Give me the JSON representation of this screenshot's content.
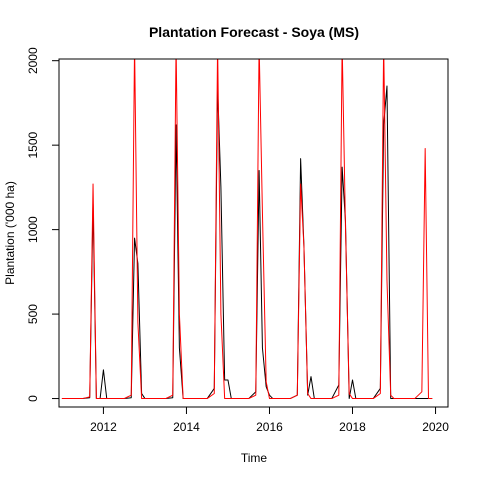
{
  "chart_data": {
    "type": "line",
    "title": "Plantation Forecast - Soya (MS)",
    "xlabel": "Time",
    "ylabel": "Plantation ('000 ha)",
    "xlim": [
      2010.93,
      2020.3
    ],
    "ylim": [
      -50,
      2010
    ],
    "x_ticks": [
      2012,
      2014,
      2016,
      2018,
      2020
    ],
    "x_tick_labels": [
      "2012",
      "2014",
      "2016",
      "2018",
      "2020"
    ],
    "y_ticks": [
      0,
      500,
      1000,
      1500,
      2000
    ],
    "y_tick_labels": [
      "0",
      "500",
      "1000",
      "1500",
      "2000"
    ],
    "grid": false,
    "legend": "none",
    "series": [
      {
        "color": "#000000",
        "points": [
          [
            2011.0,
            0
          ],
          [
            2011.5,
            0
          ],
          [
            2011.67,
            5
          ],
          [
            2011.75,
            1150
          ],
          [
            2011.83,
            0
          ],
          [
            2011.92,
            0
          ],
          [
            2012.0,
            170
          ],
          [
            2012.08,
            0
          ],
          [
            2012.5,
            0
          ],
          [
            2012.67,
            5
          ],
          [
            2012.75,
            950
          ],
          [
            2012.83,
            800
          ],
          [
            2012.92,
            30
          ],
          [
            2013.0,
            0
          ],
          [
            2013.5,
            0
          ],
          [
            2013.67,
            5
          ],
          [
            2013.75,
            1620
          ],
          [
            2013.83,
            300
          ],
          [
            2013.92,
            0
          ],
          [
            2014.5,
            0
          ],
          [
            2014.67,
            60
          ],
          [
            2014.75,
            1850
          ],
          [
            2014.83,
            1250
          ],
          [
            2014.92,
            110
          ],
          [
            2015.0,
            110
          ],
          [
            2015.08,
            0
          ],
          [
            2015.5,
            0
          ],
          [
            2015.67,
            40
          ],
          [
            2015.75,
            1350
          ],
          [
            2015.83,
            300
          ],
          [
            2015.92,
            70
          ],
          [
            2016.0,
            20
          ],
          [
            2016.08,
            0
          ],
          [
            2016.5,
            0
          ],
          [
            2016.67,
            20
          ],
          [
            2016.75,
            1420
          ],
          [
            2016.83,
            900
          ],
          [
            2016.92,
            20
          ],
          [
            2017.0,
            130
          ],
          [
            2017.08,
            0
          ],
          [
            2017.5,
            0
          ],
          [
            2017.67,
            80
          ],
          [
            2017.75,
            1370
          ],
          [
            2017.83,
            1050
          ],
          [
            2017.92,
            0
          ],
          [
            2018.0,
            110
          ],
          [
            2018.08,
            0
          ],
          [
            2018.5,
            0
          ],
          [
            2018.67,
            60
          ],
          [
            2018.75,
            1620
          ],
          [
            2018.83,
            1850
          ],
          [
            2018.92,
            0
          ],
          [
            2019.0,
            0
          ],
          [
            2019.92,
            0
          ]
        ]
      },
      {
        "color": "#ff0000",
        "points": [
          [
            2011.0,
            0
          ],
          [
            2011.5,
            0
          ],
          [
            2011.67,
            10
          ],
          [
            2011.75,
            1270
          ],
          [
            2011.83,
            0
          ],
          [
            2012.5,
            0
          ],
          [
            2012.67,
            20
          ],
          [
            2012.75,
            2100
          ],
          [
            2012.83,
            450
          ],
          [
            2012.92,
            0
          ],
          [
            2013.5,
            0
          ],
          [
            2013.67,
            20
          ],
          [
            2013.75,
            2100
          ],
          [
            2013.83,
            500
          ],
          [
            2013.92,
            0
          ],
          [
            2014.5,
            0
          ],
          [
            2014.67,
            30
          ],
          [
            2014.75,
            2100
          ],
          [
            2014.83,
            500
          ],
          [
            2014.92,
            0
          ],
          [
            2015.5,
            0
          ],
          [
            2015.67,
            20
          ],
          [
            2015.75,
            2100
          ],
          [
            2015.83,
            1100
          ],
          [
            2015.92,
            100
          ],
          [
            2016.0,
            0
          ],
          [
            2016.5,
            0
          ],
          [
            2016.67,
            20
          ],
          [
            2016.75,
            1270
          ],
          [
            2016.83,
            900
          ],
          [
            2016.92,
            30
          ],
          [
            2017.0,
            0
          ],
          [
            2017.5,
            0
          ],
          [
            2017.67,
            20
          ],
          [
            2017.75,
            2100
          ],
          [
            2017.83,
            1020
          ],
          [
            2017.92,
            30
          ],
          [
            2018.0,
            0
          ],
          [
            2018.5,
            0
          ],
          [
            2018.67,
            30
          ],
          [
            2018.75,
            2100
          ],
          [
            2018.83,
            700
          ],
          [
            2018.92,
            20
          ],
          [
            2019.0,
            0
          ],
          [
            2019.5,
            0
          ],
          [
            2019.67,
            40
          ],
          [
            2019.75,
            1480
          ],
          [
            2019.83,
            0
          ],
          [
            2019.92,
            0
          ]
        ]
      }
    ]
  }
}
